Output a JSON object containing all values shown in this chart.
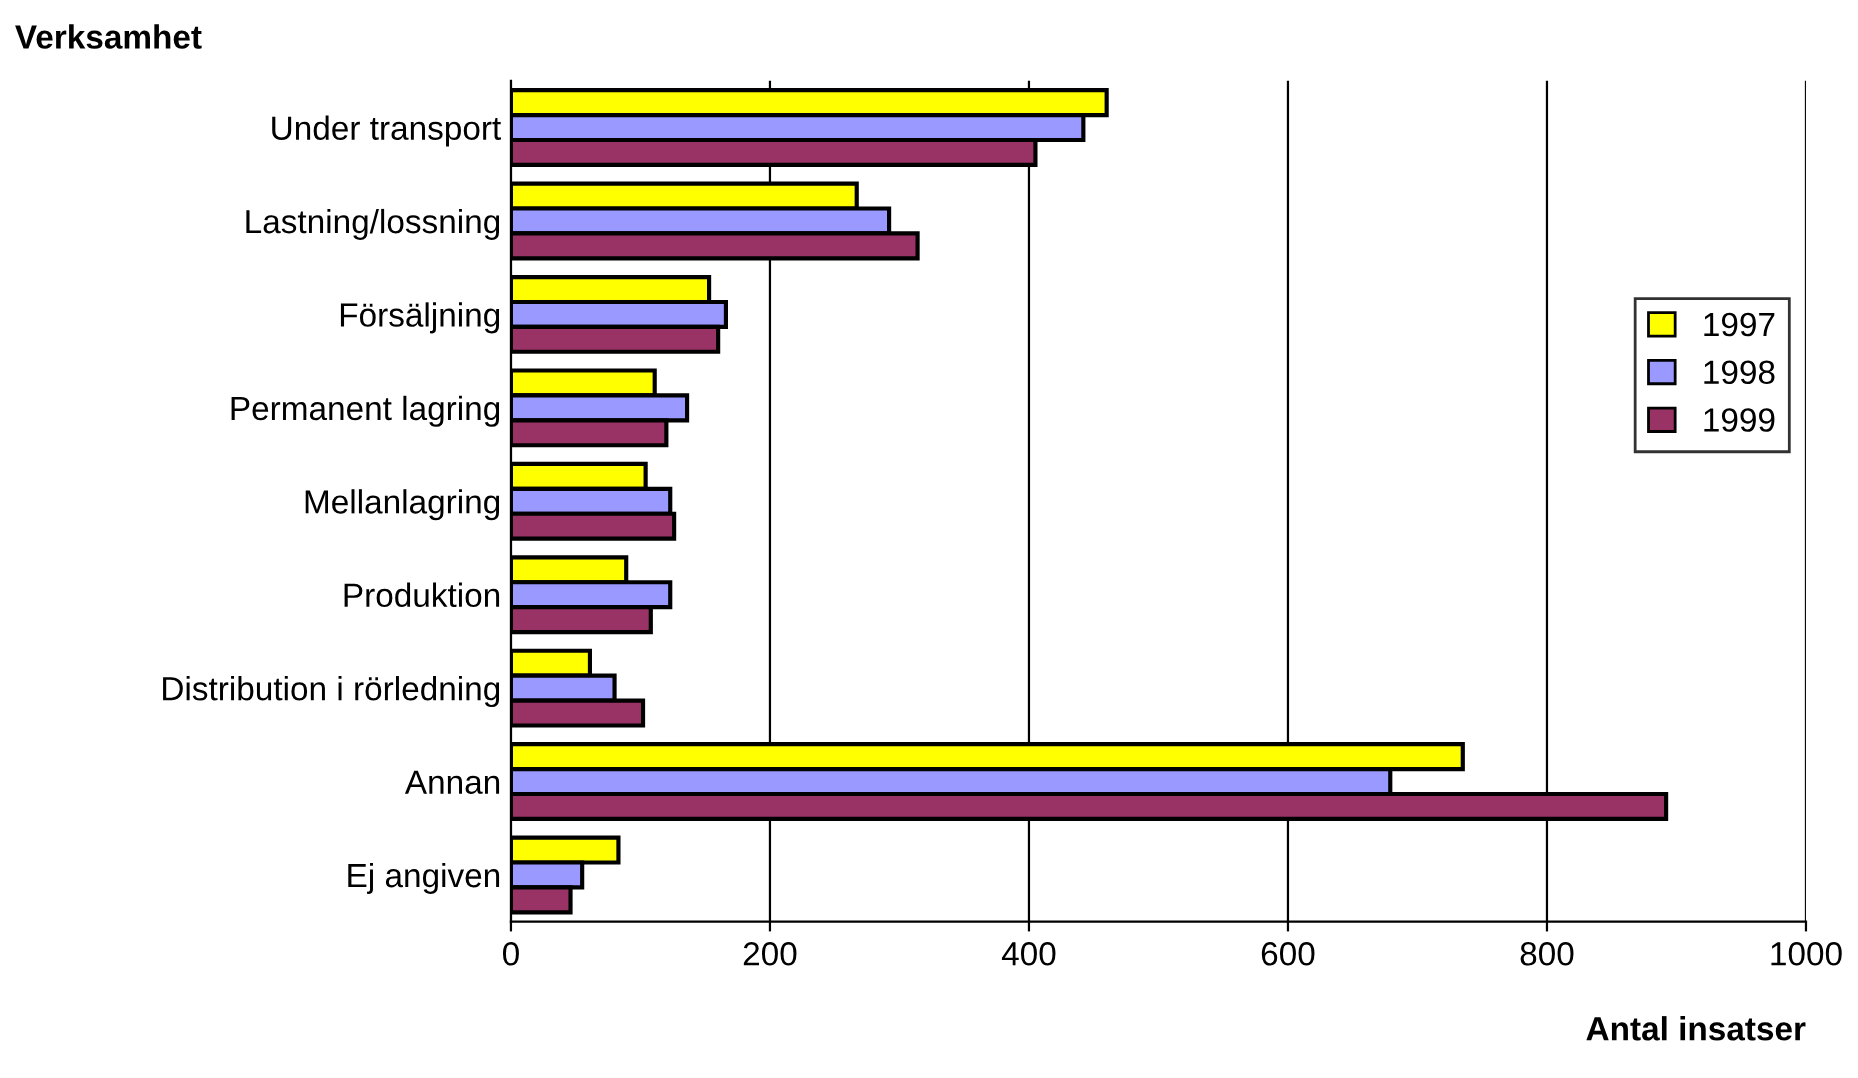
{
  "chart_data": {
    "type": "bar",
    "orientation": "horizontal",
    "ylabel": "Verksamhet",
    "xlabel": "Antal insatser",
    "categories": [
      "Under transport",
      "Lastning/lossning",
      "Försäljning",
      "Permanent lagring",
      "Mellanlagring",
      "Produktion",
      "Distribution i rörledning",
      "Annan",
      "Ej angiven"
    ],
    "series": [
      {
        "name": "1997",
        "color": "#ffff00",
        "values": [
          460,
          267,
          153,
          111,
          104,
          89,
          61,
          735,
          83
        ]
      },
      {
        "name": "1998",
        "color": "#9999ff",
        "values": [
          442,
          292,
          166,
          136,
          123,
          123,
          80,
          679,
          55
        ]
      },
      {
        "name": "1999",
        "color": "#993366",
        "values": [
          405,
          314,
          160,
          120,
          126,
          108,
          102,
          892,
          46
        ]
      }
    ],
    "xlim": [
      0,
      1000
    ],
    "xticks": [
      0,
      200,
      400,
      600,
      800,
      1000
    ],
    "grid": "x",
    "legend": "right"
  }
}
